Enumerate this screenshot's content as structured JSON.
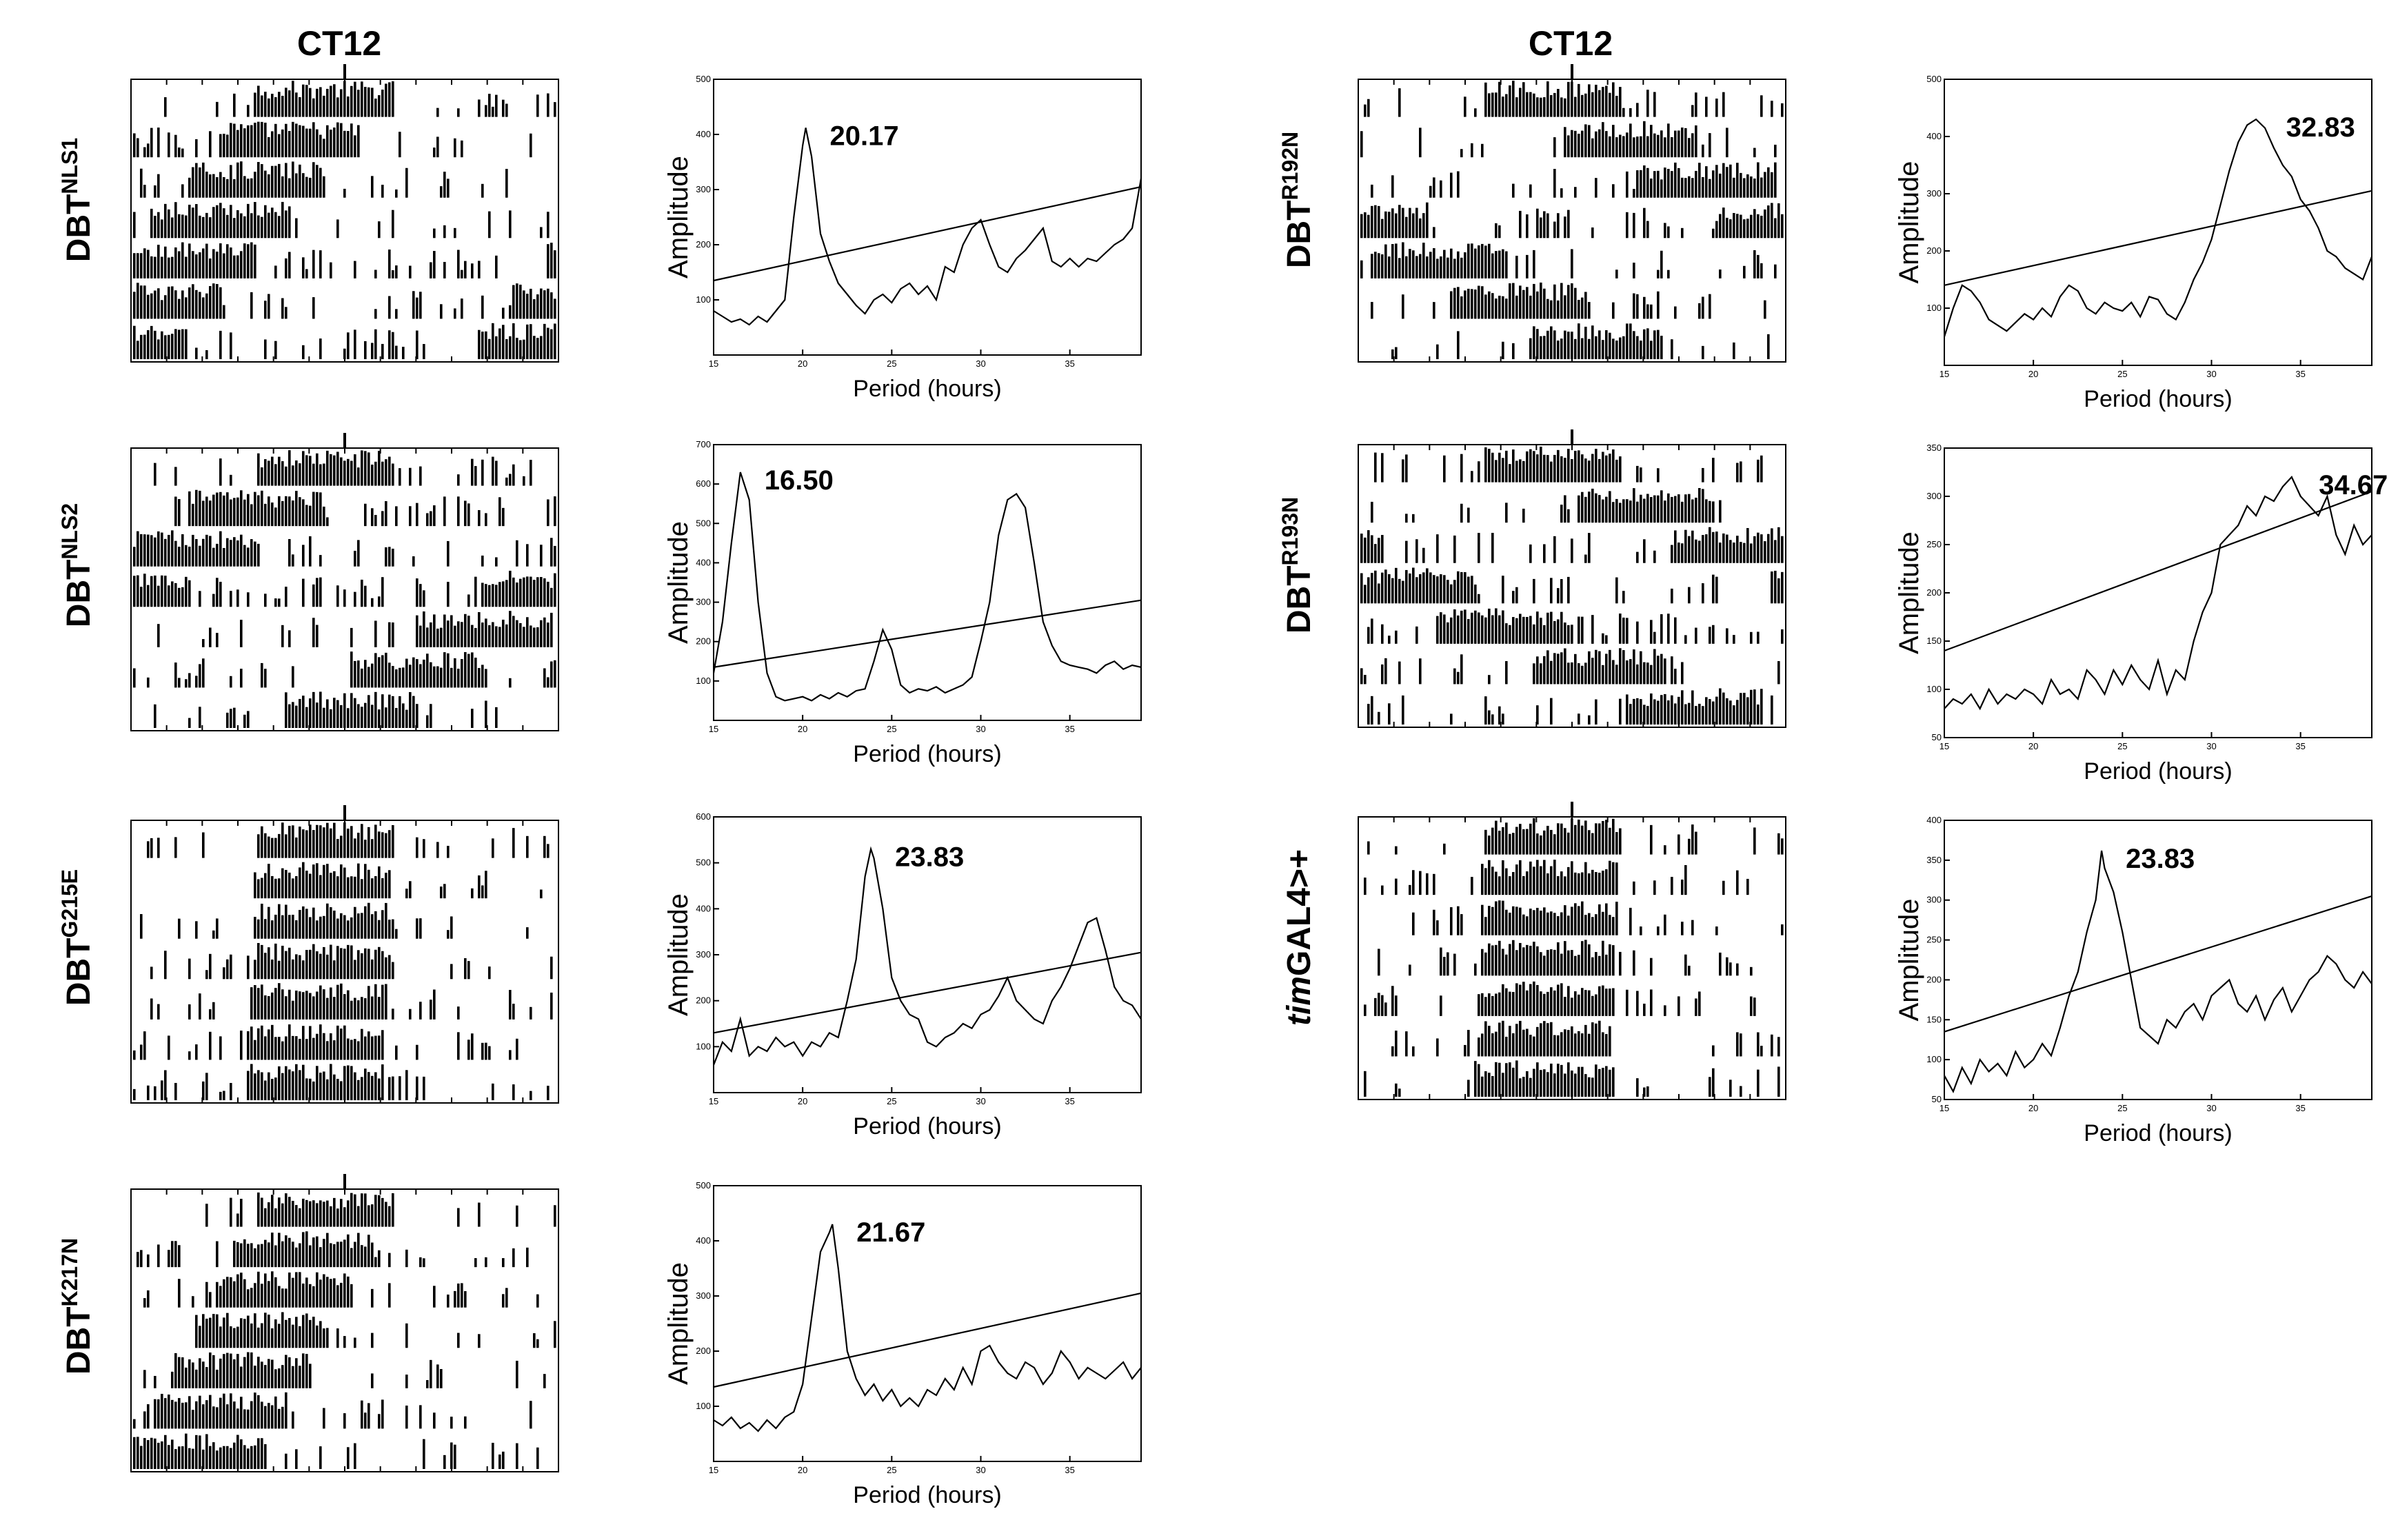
{
  "header": {
    "left_label": "CT12",
    "right_label": "CT12"
  },
  "panels": [
    {
      "id": "nls1",
      "genotype": {
        "base": "DBT",
        "sup": "NLS1",
        "italic": ""
      },
      "actogram": {
        "ct_marker": "CT12",
        "row_count": 7
      },
      "periodogram": {
        "peak_label": "20.17"
      }
    },
    {
      "id": "nls2",
      "genotype": {
        "base": "DBT",
        "sup": "NLS2",
        "italic": ""
      },
      "actogram": {
        "ct_marker": "CT12",
        "row_count": 7
      },
      "periodogram": {
        "peak_label": "16.50"
      }
    },
    {
      "id": "g215e",
      "genotype": {
        "base": "DBT",
        "sup": "G215E",
        "italic": ""
      },
      "actogram": {
        "ct_marker": "CT12",
        "row_count": 7
      },
      "periodogram": {
        "peak_label": "23.83"
      }
    },
    {
      "id": "k217n",
      "genotype": {
        "base": "DBT",
        "sup": "K217N",
        "italic": ""
      },
      "actogram": {
        "ct_marker": "CT12",
        "row_count": 7
      },
      "periodogram": {
        "peak_label": "21.67"
      }
    },
    {
      "id": "r192n",
      "genotype": {
        "base": "DBT",
        "sup": "R192N",
        "italic": ""
      },
      "actogram": {
        "ct_marker": "CT12",
        "row_count": 7
      },
      "periodogram": {
        "peak_label": "32.83"
      }
    },
    {
      "id": "r193n",
      "genotype": {
        "base": "DBT",
        "sup": "R193N",
        "italic": ""
      },
      "actogram": {
        "ct_marker": "CT12",
        "row_count": 7
      },
      "periodogram": {
        "peak_label": "34.67"
      }
    },
    {
      "id": "timgal4",
      "genotype": {
        "base": "GAL4>+",
        "sup": "",
        "italic": "tim"
      },
      "actogram": {
        "ct_marker": "CT12",
        "row_count": 7
      },
      "periodogram": {
        "peak_label": "23.83"
      }
    }
  ],
  "chart_data": [
    {
      "type": "line",
      "id": "nls1",
      "title": "",
      "xlabel": "Period (hours)",
      "ylabel": "Amplitude",
      "xlim": [
        15,
        39
      ],
      "ylim": [
        0,
        500
      ],
      "xticks": [
        15,
        20,
        25,
        30,
        35
      ],
      "yticks": [
        100,
        200,
        300,
        400,
        500
      ],
      "series": [
        {
          "name": "periodogram",
          "x": [
            15,
            15.5,
            16,
            16.5,
            17,
            17.5,
            18,
            18.5,
            19,
            19.5,
            20,
            20.17,
            20.5,
            21,
            21.5,
            22,
            22.5,
            23,
            23.5,
            24,
            24.5,
            25,
            25.5,
            26,
            26.5,
            27,
            27.5,
            28,
            28.5,
            29,
            29.5,
            30,
            30.5,
            31,
            31.5,
            32,
            32.5,
            33,
            33.5,
            34,
            34.5,
            35,
            35.5,
            36,
            36.5,
            37,
            37.5,
            38,
            38.5,
            39
          ],
          "y": [
            80,
            70,
            60,
            65,
            55,
            70,
            60,
            80,
            100,
            250,
            380,
            412,
            360,
            220,
            170,
            130,
            110,
            90,
            75,
            100,
            110,
            95,
            120,
            130,
            110,
            125,
            100,
            160,
            150,
            200,
            230,
            245,
            200,
            160,
            150,
            175,
            190,
            210,
            230,
            170,
            160,
            175,
            160,
            175,
            170,
            185,
            200,
            210,
            230,
            320
          ]
        },
        {
          "name": "significance",
          "x": [
            15,
            39
          ],
          "y": [
            135,
            305
          ]
        }
      ],
      "peak": {
        "x": 20.17,
        "y": 412,
        "label": "20.17"
      }
    },
    {
      "type": "line",
      "id": "nls2",
      "title": "",
      "xlabel": "Period (hours)",
      "ylabel": "Amplitude",
      "xlim": [
        15,
        39
      ],
      "ylim": [
        0,
        700
      ],
      "xticks": [
        15,
        20,
        25,
        30,
        35
      ],
      "yticks": [
        100,
        200,
        300,
        400,
        500,
        600,
        700
      ],
      "series": [
        {
          "name": "periodogram",
          "x": [
            15,
            15.5,
            16,
            16.5,
            17,
            17.5,
            18,
            18.5,
            19,
            19.5,
            20,
            20.5,
            21,
            21.5,
            22,
            22.5,
            23,
            23.5,
            24,
            24.5,
            25,
            25.5,
            26,
            26.5,
            27,
            27.5,
            28,
            28.5,
            29,
            29.5,
            30,
            30.5,
            31,
            31.5,
            32,
            32.5,
            33,
            33.5,
            34,
            34.5,
            35,
            35.5,
            36,
            36.5,
            37,
            37.5,
            38,
            38.5,
            39
          ],
          "y": [
            120,
            250,
            450,
            630,
            560,
            300,
            120,
            60,
            50,
            55,
            60,
            50,
            65,
            55,
            70,
            60,
            75,
            80,
            150,
            230,
            180,
            90,
            70,
            80,
            75,
            85,
            70,
            80,
            90,
            110,
            200,
            300,
            470,
            560,
            575,
            540,
            400,
            250,
            190,
            150,
            140,
            135,
            130,
            120,
            140,
            150,
            130,
            140,
            135
          ]
        },
        {
          "name": "significance",
          "x": [
            15,
            39
          ],
          "y": [
            135,
            305
          ]
        }
      ],
      "peak": {
        "x": 16.5,
        "y": 630,
        "label": "16.50"
      }
    },
    {
      "type": "line",
      "id": "g215e",
      "title": "",
      "xlabel": "Period (hours)",
      "ylabel": "Amplitude",
      "xlim": [
        15,
        39
      ],
      "ylim": [
        0,
        600
      ],
      "xticks": [
        15,
        20,
        25,
        30,
        35
      ],
      "yticks": [
        100,
        200,
        300,
        400,
        500,
        600
      ],
      "series": [
        {
          "name": "periodogram",
          "x": [
            15,
            15.5,
            16,
            16.5,
            17,
            17.5,
            18,
            18.5,
            19,
            19.5,
            20,
            20.5,
            21,
            21.5,
            22,
            22.5,
            23,
            23.5,
            23.83,
            24,
            24.5,
            25,
            25.5,
            26,
            26.5,
            27,
            27.5,
            28,
            28.5,
            29,
            29.5,
            30,
            30.5,
            31,
            31.5,
            32,
            32.5,
            33,
            33.5,
            34,
            34.5,
            35,
            35.5,
            36,
            36.5,
            37,
            37.5,
            38,
            38.5,
            39
          ],
          "y": [
            60,
            110,
            90,
            160,
            80,
            100,
            90,
            120,
            100,
            110,
            80,
            110,
            100,
            130,
            120,
            200,
            290,
            470,
            530,
            510,
            400,
            250,
            200,
            170,
            160,
            110,
            100,
            120,
            130,
            150,
            140,
            170,
            180,
            210,
            250,
            200,
            180,
            160,
            150,
            200,
            230,
            270,
            320,
            370,
            380,
            310,
            230,
            200,
            190,
            160
          ]
        },
        {
          "name": "significance",
          "x": [
            15,
            39
          ],
          "y": [
            130,
            305
          ]
        }
      ],
      "peak": {
        "x": 23.83,
        "y": 530,
        "label": "23.83"
      }
    },
    {
      "type": "line",
      "id": "k217n",
      "title": "",
      "xlabel": "Period (hours)",
      "ylabel": "Amplitude",
      "xlim": [
        15,
        39
      ],
      "ylim": [
        0,
        500
      ],
      "xticks": [
        15,
        20,
        25,
        30,
        35
      ],
      "yticks": [
        100,
        200,
        300,
        400,
        500
      ],
      "series": [
        {
          "name": "periodogram",
          "x": [
            15,
            15.5,
            16,
            16.5,
            17,
            17.5,
            18,
            18.5,
            19,
            19.5,
            20,
            20.5,
            21,
            21.5,
            21.67,
            22,
            22.5,
            23,
            23.5,
            24,
            24.5,
            25,
            25.5,
            26,
            26.5,
            27,
            27.5,
            28,
            28.5,
            29,
            29.5,
            30,
            30.5,
            31,
            31.5,
            32,
            32.5,
            33,
            33.5,
            34,
            34.5,
            35,
            35.5,
            36,
            36.5,
            37,
            37.5,
            38,
            38.5,
            39
          ],
          "y": [
            75,
            65,
            80,
            60,
            70,
            55,
            75,
            60,
            80,
            90,
            140,
            260,
            380,
            415,
            430,
            350,
            200,
            150,
            120,
            140,
            110,
            130,
            100,
            115,
            100,
            130,
            120,
            150,
            130,
            170,
            140,
            200,
            210,
            180,
            160,
            150,
            180,
            170,
            140,
            160,
            200,
            180,
            150,
            170,
            160,
            150,
            165,
            180,
            150,
            170
          ]
        },
        {
          "name": "significance",
          "x": [
            15,
            39
          ],
          "y": [
            135,
            305
          ]
        }
      ],
      "peak": {
        "x": 21.67,
        "y": 430,
        "label": "21.67"
      }
    },
    {
      "type": "line",
      "id": "r192n",
      "title": "",
      "xlabel": "Period (hours)",
      "ylabel": "Amplitude",
      "xlim": [
        15,
        39
      ],
      "ylim": [
        0,
        500
      ],
      "xticks": [
        15,
        20,
        25,
        30,
        35
      ],
      "yticks": [
        100,
        200,
        300,
        400,
        500
      ],
      "series": [
        {
          "name": "periodogram",
          "x": [
            15,
            15.5,
            16,
            16.5,
            17,
            17.5,
            18,
            18.5,
            19,
            19.5,
            20,
            20.5,
            21,
            21.5,
            22,
            22.5,
            23,
            23.5,
            24,
            24.5,
            25,
            25.5,
            26,
            26.5,
            27,
            27.5,
            28,
            28.5,
            29,
            29.5,
            30,
            30.5,
            31,
            31.5,
            32,
            32.5,
            32.83,
            33,
            33.5,
            34,
            34.5,
            35,
            35.5,
            36,
            36.5,
            37,
            37.5,
            38,
            38.5,
            39
          ],
          "y": [
            50,
            100,
            140,
            130,
            110,
            80,
            70,
            60,
            75,
            90,
            80,
            100,
            85,
            120,
            140,
            130,
            100,
            90,
            110,
            100,
            95,
            110,
            85,
            120,
            115,
            90,
            80,
            110,
            150,
            180,
            220,
            280,
            340,
            390,
            420,
            430,
            420,
            415,
            380,
            350,
            330,
            290,
            270,
            240,
            200,
            190,
            170,
            160,
            150,
            190
          ]
        },
        {
          "name": "significance",
          "x": [
            15,
            39
          ],
          "y": [
            140,
            305
          ]
        }
      ],
      "peak": {
        "x": 32.83,
        "y": 430,
        "label": "32.83"
      }
    },
    {
      "type": "line",
      "id": "r193n",
      "title": "",
      "xlabel": "Period (hours)",
      "ylabel": "Amplitude",
      "xlim": [
        15,
        39
      ],
      "ylim": [
        50,
        350
      ],
      "xticks": [
        15,
        20,
        25,
        30,
        35
      ],
      "yticks": [
        50,
        100,
        150,
        200,
        250,
        300,
        350
      ],
      "series": [
        {
          "name": "periodogram",
          "x": [
            15,
            15.5,
            16,
            16.5,
            17,
            17.5,
            18,
            18.5,
            19,
            19.5,
            20,
            20.5,
            21,
            21.5,
            22,
            22.5,
            23,
            23.5,
            24,
            24.5,
            25,
            25.5,
            26,
            26.5,
            27,
            27.5,
            28,
            28.5,
            29,
            29.5,
            30,
            30.5,
            31,
            31.5,
            32,
            32.5,
            33,
            33.5,
            34,
            34.5,
            35,
            35.5,
            36,
            36.5,
            37,
            37.5,
            38,
            38.5,
            39
          ],
          "y": [
            80,
            90,
            85,
            95,
            80,
            100,
            85,
            95,
            90,
            100,
            95,
            85,
            110,
            95,
            100,
            90,
            120,
            110,
            95,
            120,
            105,
            125,
            110,
            100,
            130,
            95,
            120,
            110,
            150,
            180,
            200,
            250,
            260,
            270,
            290,
            280,
            300,
            295,
            310,
            320,
            300,
            290,
            280,
            300,
            260,
            240,
            270,
            250,
            260
          ]
        },
        {
          "name": "significance",
          "x": [
            15,
            39
          ],
          "y": [
            140,
            305
          ]
        }
      ],
      "peak": {
        "x": 34.67,
        "y": 320,
        "label": "34.67"
      }
    },
    {
      "type": "line",
      "id": "timgal4",
      "title": "",
      "xlabel": "Period (hours)",
      "ylabel": "Amplitude",
      "xlim": [
        15,
        39
      ],
      "ylim": [
        50,
        400
      ],
      "xticks": [
        15,
        20,
        25,
        30,
        35
      ],
      "yticks": [
        50,
        100,
        150,
        200,
        250,
        300,
        350,
        400
      ],
      "series": [
        {
          "name": "periodogram",
          "x": [
            15,
            15.5,
            16,
            16.5,
            17,
            17.5,
            18,
            18.5,
            19,
            19.5,
            20,
            20.5,
            21,
            21.5,
            22,
            22.5,
            23,
            23.5,
            23.83,
            24,
            24.5,
            25,
            25.5,
            26,
            26.5,
            27,
            27.5,
            28,
            28.5,
            29,
            29.5,
            30,
            30.5,
            31,
            31.5,
            32,
            32.5,
            33,
            33.5,
            34,
            34.5,
            35,
            35.5,
            36,
            36.5,
            37,
            37.5,
            38,
            38.5,
            39
          ],
          "y": [
            80,
            60,
            90,
            70,
            100,
            85,
            95,
            80,
            110,
            90,
            100,
            120,
            105,
            140,
            180,
            210,
            260,
            300,
            362,
            340,
            310,
            260,
            200,
            140,
            130,
            120,
            150,
            140,
            160,
            170,
            150,
            180,
            190,
            200,
            170,
            160,
            180,
            150,
            175,
            190,
            160,
            180,
            200,
            210,
            230,
            220,
            200,
            190,
            210,
            195
          ]
        },
        {
          "name": "significance",
          "x": [
            15,
            39
          ],
          "y": [
            135,
            305
          ]
        }
      ],
      "peak": {
        "x": 23.83,
        "y": 362,
        "label": "23.83"
      }
    }
  ]
}
